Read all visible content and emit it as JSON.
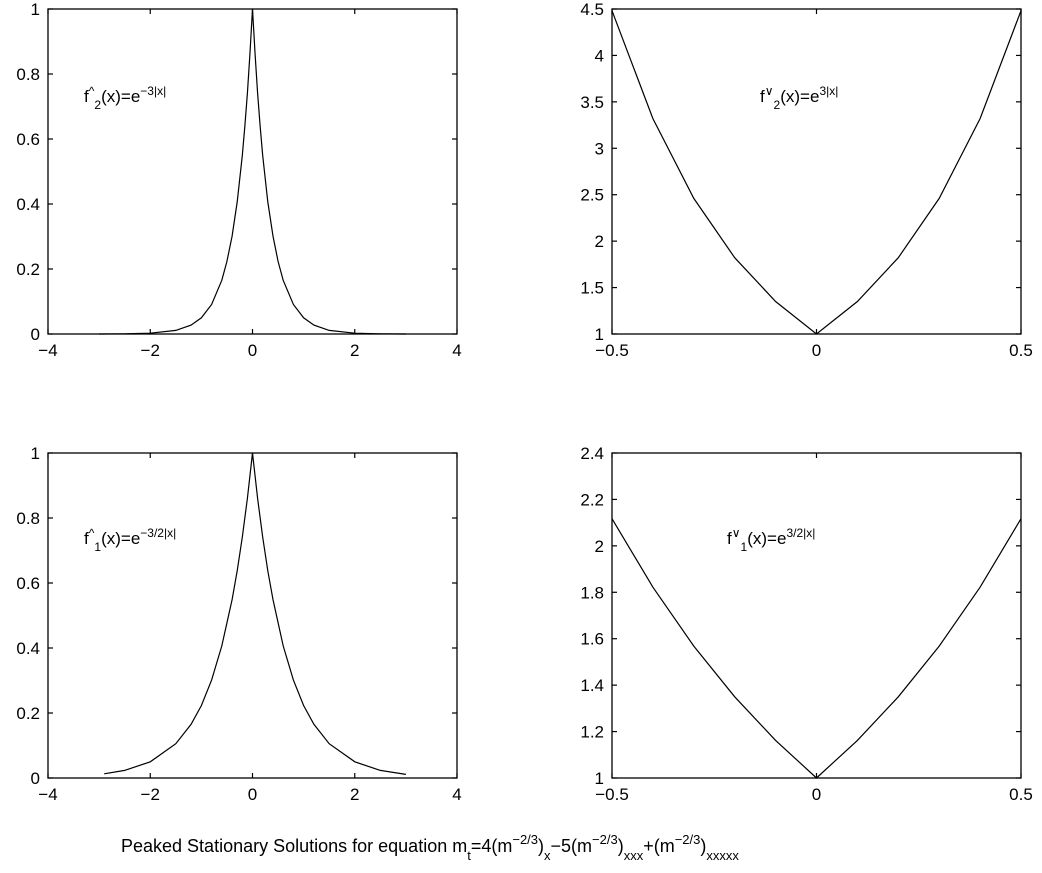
{
  "figure": {
    "caption": {
      "text": "Peaked Stationary Solutions for equation m",
      "parts": [
        {
          "t": "Peaked Stationary Solutions for equation m",
          "s": "n"
        },
        {
          "t": "t",
          "s": "sub"
        },
        {
          "t": "=4(m",
          "s": "n"
        },
        {
          "t": "−2/3",
          "s": "sup"
        },
        {
          "t": ")",
          "s": "n"
        },
        {
          "t": "x",
          "s": "sub"
        },
        {
          "t": "−5(m",
          "s": "n"
        },
        {
          "t": "−2/3",
          "s": "sup"
        },
        {
          "t": ")",
          "s": "n"
        },
        {
          "t": "xxx",
          "s": "sub"
        },
        {
          "t": "+(m",
          "s": "n"
        },
        {
          "t": "−2/3",
          "s": "sup"
        },
        {
          "t": ")",
          "s": "n"
        },
        {
          "t": "xxxxx",
          "s": "sub"
        }
      ]
    }
  },
  "chart_data": [
    {
      "type": "line",
      "xlim": [
        -4,
        4
      ],
      "ylim": [
        0,
        1
      ],
      "x_ticks": [
        "−4",
        "−2",
        "0",
        "2",
        "4"
      ],
      "x_tick_values": [
        -4,
        -2,
        0,
        2,
        4
      ],
      "y_ticks": [
        "0",
        "0.2",
        "0.4",
        "0.6",
        "0.8",
        "1"
      ],
      "y_tick_values": [
        0,
        0.2,
        0.4,
        0.6,
        0.8,
        1
      ],
      "grid": false,
      "annotation": [
        {
          "t": "f",
          "s": "n"
        },
        {
          "t": "^",
          "s": "sup"
        },
        {
          "t": "2",
          "s": "sub"
        },
        {
          "t": "(x)=e",
          "s": "n"
        },
        {
          "t": "−3|x|",
          "s": "sup"
        }
      ],
      "series": [
        {
          "x": [
            -3.0,
            -2.5,
            -2.0,
            -1.5,
            -1.2,
            -1.0,
            -0.8,
            -0.6,
            -0.5,
            -0.4,
            -0.3,
            -0.2,
            -0.15,
            -0.1,
            -0.05,
            0.0,
            0.05,
            0.1,
            0.15,
            0.2,
            0.3,
            0.4,
            0.5,
            0.6,
            0.8,
            1.0,
            1.2,
            1.5,
            2.0,
            2.5,
            3.0
          ],
          "y": [
            0.0001,
            0.0006,
            0.0025,
            0.0111,
            0.0273,
            0.0498,
            0.0907,
            0.1653,
            0.2231,
            0.3012,
            0.4066,
            0.5488,
            0.6376,
            0.7408,
            0.8607,
            1.0,
            0.8607,
            0.7408,
            0.6376,
            0.5488,
            0.4066,
            0.3012,
            0.2231,
            0.1653,
            0.0907,
            0.0498,
            0.0273,
            0.0111,
            0.0025,
            0.0006,
            0.0001
          ]
        }
      ]
    },
    {
      "type": "line",
      "xlim": [
        -0.5,
        0.5
      ],
      "ylim": [
        1,
        4.5
      ],
      "x_ticks": [
        "−0.5",
        "0",
        "0.5"
      ],
      "x_tick_values": [
        -0.5,
        0,
        0.5
      ],
      "y_ticks": [
        "1",
        "1.5",
        "2",
        "2.5",
        "3",
        "3.5",
        "4",
        "4.5"
      ],
      "y_tick_values": [
        1,
        1.5,
        2,
        2.5,
        3,
        3.5,
        4,
        4.5
      ],
      "grid": false,
      "annotation": [
        {
          "t": "f",
          "s": "n"
        },
        {
          "t": "∨",
          "s": "sup"
        },
        {
          "t": "2",
          "s": "sub"
        },
        {
          "t": "(x)=e",
          "s": "n"
        },
        {
          "t": "3|x|",
          "s": "sup"
        }
      ],
      "series": [
        {
          "x": [
            -0.5,
            -0.4,
            -0.3,
            -0.2,
            -0.1,
            0.0,
            0.1,
            0.2,
            0.3,
            0.4,
            0.5
          ],
          "y": [
            4.482,
            3.32,
            2.46,
            1.822,
            1.35,
            1.0,
            1.35,
            1.822,
            2.46,
            3.32,
            4.482
          ]
        }
      ]
    },
    {
      "type": "line",
      "xlim": [
        -4,
        4
      ],
      "ylim": [
        0,
        1
      ],
      "x_ticks": [
        "−4",
        "−2",
        "0",
        "2",
        "4"
      ],
      "x_tick_values": [
        -4,
        -2,
        0,
        2,
        4
      ],
      "y_ticks": [
        "0",
        "0.2",
        "0.4",
        "0.6",
        "0.8",
        "1"
      ],
      "y_tick_values": [
        0,
        0.2,
        0.4,
        0.6,
        0.8,
        1
      ],
      "grid": false,
      "annotation": [
        {
          "t": "f",
          "s": "n"
        },
        {
          "t": "^",
          "s": "sup"
        },
        {
          "t": "1",
          "s": "sub"
        },
        {
          "t": "(x)=e",
          "s": "n"
        },
        {
          "t": "−3/2|x|",
          "s": "sup"
        }
      ],
      "series": [
        {
          "x": [
            -2.9,
            -2.5,
            -2.0,
            -1.5,
            -1.2,
            -1.0,
            -0.8,
            -0.6,
            -0.4,
            -0.3,
            -0.2,
            -0.1,
            0.0,
            0.1,
            0.2,
            0.3,
            0.4,
            0.6,
            0.8,
            1.0,
            1.2,
            1.5,
            2.0,
            2.5,
            3.0
          ],
          "y": [
            0.0129,
            0.0235,
            0.0498,
            0.1054,
            0.1653,
            0.2231,
            0.3012,
            0.4066,
            0.5488,
            0.6376,
            0.7408,
            0.8607,
            1.0,
            0.8607,
            0.7408,
            0.6376,
            0.5488,
            0.4066,
            0.3012,
            0.2231,
            0.1653,
            0.1054,
            0.0498,
            0.0235,
            0.0111
          ]
        }
      ]
    },
    {
      "type": "line",
      "xlim": [
        -0.5,
        0.5
      ],
      "ylim": [
        1,
        2.4
      ],
      "x_ticks": [
        "−0.5",
        "0",
        "0.5"
      ],
      "x_tick_values": [
        -0.5,
        0,
        0.5
      ],
      "y_ticks": [
        "1",
        "1.2",
        "1.4",
        "1.6",
        "1.8",
        "2",
        "2.2",
        "2.4"
      ],
      "y_tick_values": [
        1,
        1.2,
        1.4,
        1.6,
        1.8,
        2,
        2.2,
        2.4
      ],
      "grid": false,
      "annotation": [
        {
          "t": "f",
          "s": "n"
        },
        {
          "t": "∨",
          "s": "sup"
        },
        {
          "t": "1",
          "s": "sub"
        },
        {
          "t": "(x)=e",
          "s": "n"
        },
        {
          "t": "3/2|x|",
          "s": "sup"
        }
      ],
      "series": [
        {
          "x": [
            -0.5,
            -0.4,
            -0.3,
            -0.2,
            -0.1,
            0.0,
            0.1,
            0.2,
            0.3,
            0.4,
            0.5
          ],
          "y": [
            2.117,
            1.822,
            1.568,
            1.35,
            1.162,
            1.0,
            1.162,
            1.35,
            1.568,
            1.822,
            2.117
          ]
        }
      ]
    }
  ]
}
